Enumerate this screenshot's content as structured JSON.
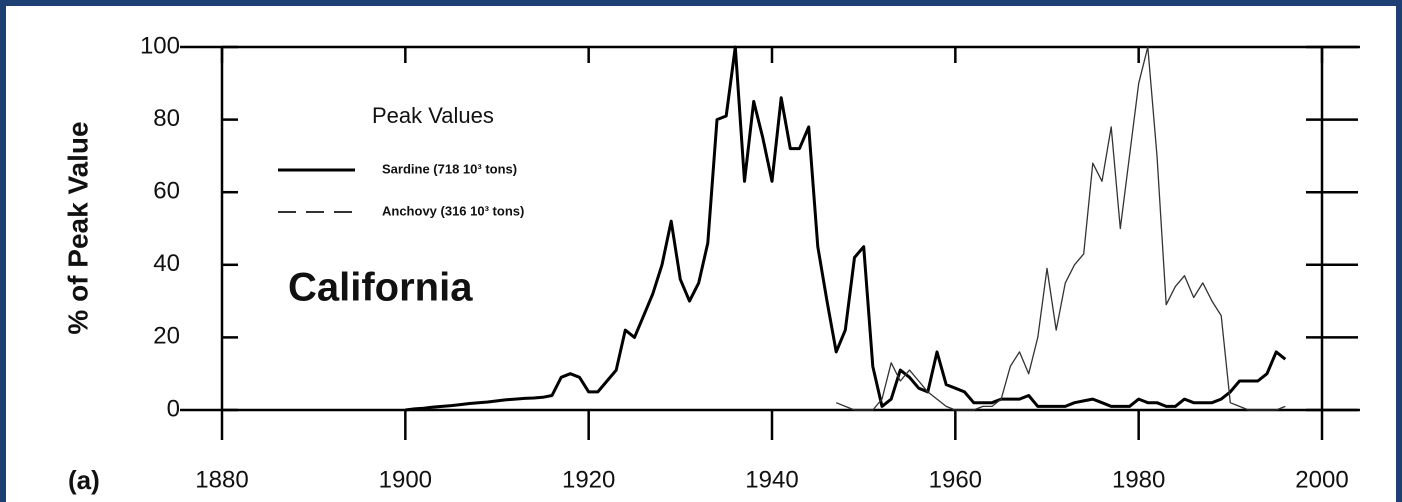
{
  "chart_data": {
    "type": "line",
    "panel_label": "(a)",
    "ylabel": "% of Peak Value",
    "annotation": "California",
    "legend_title": "Peak Values",
    "x": [
      1900,
      1901,
      1902,
      1903,
      1904,
      1905,
      1906,
      1907,
      1908,
      1909,
      1910,
      1911,
      1912,
      1913,
      1914,
      1915,
      1916,
      1917,
      1918,
      1919,
      1920,
      1921,
      1922,
      1923,
      1924,
      1925,
      1926,
      1927,
      1928,
      1929,
      1930,
      1931,
      1932,
      1933,
      1934,
      1935,
      1936,
      1937,
      1938,
      1939,
      1940,
      1941,
      1942,
      1943,
      1944,
      1945,
      1946,
      1947,
      1948,
      1949,
      1950,
      1951,
      1952,
      1953,
      1954,
      1955,
      1956,
      1957,
      1958,
      1959,
      1960,
      1961,
      1962,
      1963,
      1964,
      1965,
      1966,
      1967,
      1968,
      1969,
      1970,
      1971,
      1972,
      1973,
      1974,
      1975,
      1976,
      1977,
      1978,
      1979,
      1980,
      1981,
      1982,
      1983,
      1984,
      1985,
      1986,
      1987,
      1988,
      1989,
      1990,
      1991,
      1992,
      1993,
      1994,
      1995,
      1996
    ],
    "series": [
      {
        "name": "Sardine  (718 10³ tons)",
        "color": "#000000",
        "line_style": "solid",
        "values": [
          0,
          0.3,
          0.5,
          0.8,
          1,
          1.2,
          1.5,
          1.8,
          2,
          2.2,
          2.5,
          2.8,
          3,
          3.2,
          3.3,
          3.5,
          4,
          9,
          10,
          9,
          5,
          5,
          8,
          11,
          22,
          20,
          26,
          32,
          40,
          52,
          36,
          30,
          35,
          46,
          80,
          81,
          100,
          63,
          85,
          75,
          63,
          86,
          72,
          72,
          78,
          45,
          30,
          16,
          22,
          42,
          45,
          12,
          1,
          3,
          11,
          9,
          6,
          5,
          16,
          7,
          6,
          5,
          2,
          2,
          2,
          3,
          3,
          3,
          4,
          1,
          1,
          1,
          1,
          2,
          2.5,
          3,
          2,
          1,
          1,
          1,
          3,
          2,
          2,
          1,
          1,
          3,
          2,
          2,
          2,
          3,
          5,
          8,
          8,
          8,
          10,
          16,
          14
        ]
      },
      {
        "name": "Anchovy (316 10³ tons)",
        "color": "#333333",
        "line_style": "dashed",
        "values": [
          null,
          null,
          null,
          null,
          null,
          null,
          null,
          null,
          null,
          null,
          null,
          null,
          null,
          null,
          null,
          null,
          null,
          null,
          null,
          null,
          null,
          null,
          null,
          null,
          null,
          null,
          null,
          null,
          null,
          null,
          null,
          null,
          null,
          null,
          null,
          null,
          null,
          null,
          null,
          null,
          null,
          null,
          null,
          null,
          null,
          null,
          null,
          2,
          1,
          0,
          0,
          0,
          3,
          13,
          8,
          11,
          8,
          5,
          3,
          1,
          0,
          0,
          0,
          1,
          1,
          3,
          12,
          16,
          10,
          20,
          39,
          22,
          35,
          40,
          43,
          68,
          63,
          78,
          50,
          70,
          90,
          100,
          70,
          29,
          34,
          37,
          31,
          35,
          30,
          26,
          2,
          1,
          0,
          0,
          0,
          0,
          1
        ]
      }
    ],
    "xlim": [
      1880,
      2000
    ],
    "xticks": [
      1880,
      1900,
      1920,
      1940,
      1960,
      1980,
      2000
    ],
    "ylim": [
      0,
      100
    ],
    "yticks": [
      0,
      20,
      40,
      60,
      80,
      100
    ]
  }
}
